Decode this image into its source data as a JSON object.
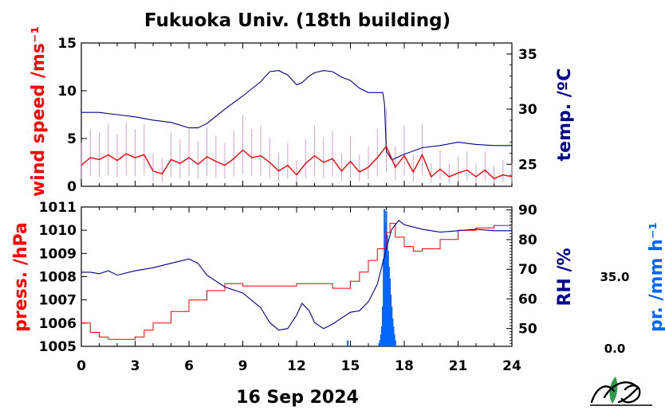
{
  "title": "Fukuoka Univ. (18th building)",
  "date_label": "16 Sep 2024",
  "colors": {
    "red": "#ff0000",
    "blue": "#00008b",
    "pink": "#cc88cc",
    "bright_blue": "#0066ff",
    "logo_green": "#2e9a4a"
  },
  "logo_name": "FUES logo",
  "chart_data": [
    {
      "type": "line",
      "panel": "top",
      "ylabel_left": "wind speed /ms⁻¹",
      "ylabel_right": "temp. /ºC",
      "ylim_left": [
        0,
        15
      ],
      "yticks_left": [
        "0",
        "5",
        "10",
        "15"
      ],
      "ylim_right": [
        23,
        36
      ],
      "yticks_right": [
        "25",
        "30",
        "35"
      ],
      "series": [
        {
          "axis": "right",
          "color": "#00008b",
          "x": [
            0,
            1,
            2,
            3,
            4,
            5,
            6,
            6.5,
            7,
            8,
            9,
            10,
            10.5,
            11,
            11.5,
            12,
            12.3,
            12.7,
            13,
            13.5,
            14,
            14.5,
            15,
            15.5,
            16,
            16.5,
            16.8,
            16.9,
            17,
            17.3,
            18,
            19,
            20,
            21,
            22,
            23,
            24
          ],
          "y": [
            29.7,
            29.7,
            29.5,
            29.3,
            29.0,
            28.8,
            28.3,
            28.3,
            28.7,
            30.0,
            31.2,
            32.5,
            33.4,
            33.5,
            33.1,
            32.2,
            32.4,
            33.0,
            33.3,
            33.5,
            33.4,
            32.9,
            32.6,
            31.9,
            31.5,
            31.5,
            31.5,
            30.5,
            26.2,
            25.4,
            25.9,
            26.5,
            26.7,
            27.0,
            26.8,
            26.7,
            26.7
          ]
        },
        {
          "axis": "left",
          "color": "#ff0000",
          "x": [
            0,
            0.5,
            1,
            1.5,
            2,
            2.5,
            3,
            3.5,
            4,
            4.5,
            5,
            5.5,
            6,
            6.5,
            7,
            7.5,
            8,
            8.5,
            9,
            9.5,
            10,
            10.5,
            11,
            11.5,
            12,
            12.5,
            13,
            13.5,
            14,
            14.5,
            15,
            15.5,
            16,
            16.5,
            17,
            17.5,
            18,
            18.5,
            19,
            19.5,
            20,
            20.5,
            21,
            21.5,
            22,
            22.5,
            23,
            23.5,
            24
          ],
          "y": [
            2.2,
            3.0,
            2.8,
            3.3,
            2.7,
            3.4,
            3.0,
            3.3,
            1.6,
            1.3,
            2.8,
            2.4,
            3.0,
            2.3,
            3.1,
            2.6,
            2.2,
            2.9,
            3.8,
            3.0,
            3.2,
            2.5,
            1.6,
            2.2,
            1.2,
            2.4,
            3.2,
            2.5,
            2.9,
            1.6,
            2.6,
            1.5,
            2.0,
            3.0,
            4.2,
            2.0,
            3.2,
            1.5,
            3.3,
            1.0,
            1.8,
            1.0,
            1.4,
            1.7,
            1.0,
            1.7,
            0.8,
            1.2,
            1.0
          ]
        }
      ]
    },
    {
      "type": "line",
      "panel": "bottom",
      "xlabel": "16 Sep 2024",
      "xlim": [
        0,
        24
      ],
      "xticks": [
        "0",
        "3",
        "6",
        "9",
        "12",
        "15",
        "18",
        "21",
        "24"
      ],
      "ylabel_left": "press. /hPa",
      "ylim_left": [
        1005,
        1011
      ],
      "yticks_left": [
        "1005",
        "1006",
        "1007",
        "1008",
        "1009",
        "1010",
        "1011"
      ],
      "ylabel_right": "RH /%",
      "ylim_right": [
        44,
        91
      ],
      "yticks_right": [
        "50",
        "60",
        "70",
        "80",
        "90"
      ],
      "ylabel_precip": "pr. /mm h⁻¹",
      "precip_scale": [
        "0.0",
        "35.0"
      ],
      "series": [
        {
          "axis": "left",
          "color": "#ff0000",
          "x": [
            0,
            0.5,
            1,
            1.5,
            2,
            2.5,
            3,
            3.5,
            4,
            5,
            6,
            7,
            8,
            9,
            10,
            11,
            12,
            13,
            14,
            15,
            15.5,
            16,
            16.5,
            17,
            17.2,
            17.5,
            18,
            18.5,
            19,
            20,
            21,
            22,
            23,
            24
          ],
          "y": [
            1006.0,
            1005.6,
            1005.4,
            1005.3,
            1005.3,
            1005.3,
            1005.4,
            1005.7,
            1006.0,
            1006.5,
            1007.0,
            1007.4,
            1007.7,
            1007.6,
            1007.6,
            1007.6,
            1007.7,
            1007.7,
            1007.5,
            1007.8,
            1008.2,
            1008.7,
            1009.2,
            1009.9,
            1010.3,
            1009.7,
            1009.3,
            1009.1,
            1009.2,
            1009.6,
            1010.0,
            1010.1,
            1010.2,
            1010.1
          ]
        },
        {
          "axis": "right",
          "color": "#00008b",
          "x": [
            0,
            0.5,
            1,
            1.5,
            2,
            3,
            4,
            5,
            6,
            6.5,
            7,
            8,
            9,
            10,
            10.5,
            11,
            11.5,
            12,
            12.3,
            12.7,
            13,
            13.5,
            14,
            14.5,
            15,
            15.5,
            16,
            16.5,
            17,
            17.3,
            17.7,
            18,
            19,
            20,
            21,
            22,
            23,
            24
          ],
          "y": [
            69.0,
            69.0,
            68.5,
            69.5,
            68.0,
            69.5,
            70.5,
            72.0,
            73.5,
            72.0,
            68.0,
            64.0,
            62.0,
            57.0,
            52.0,
            49.5,
            50.0,
            54.5,
            58.5,
            56.0,
            52.0,
            50.0,
            51.5,
            53.5,
            55.5,
            56.0,
            59.0,
            65.0,
            77.0,
            83.5,
            86.5,
            85.0,
            83.5,
            82.5,
            83.0,
            83.5,
            83.0,
            83.0
          ]
        },
        {
          "axis": "precip",
          "color": "#0066ff",
          "kind": "bars",
          "x": [
            14.85,
            16.6,
            16.65,
            16.7,
            16.75,
            16.8,
            16.85,
            16.9,
            16.95,
            17.0,
            17.05,
            17.1,
            17.15,
            17.2,
            17.25,
            17.3,
            17.35,
            17.4,
            17.45,
            17.5
          ],
          "y": [
            1.5,
            0.8,
            1.5,
            3.0,
            5.0,
            10.0,
            22.0,
            34.5,
            31.0,
            34.0,
            28.0,
            24.0,
            20.0,
            17.0,
            13.0,
            10.0,
            7.0,
            5.0,
            3.0,
            1.5
          ]
        }
      ]
    }
  ]
}
